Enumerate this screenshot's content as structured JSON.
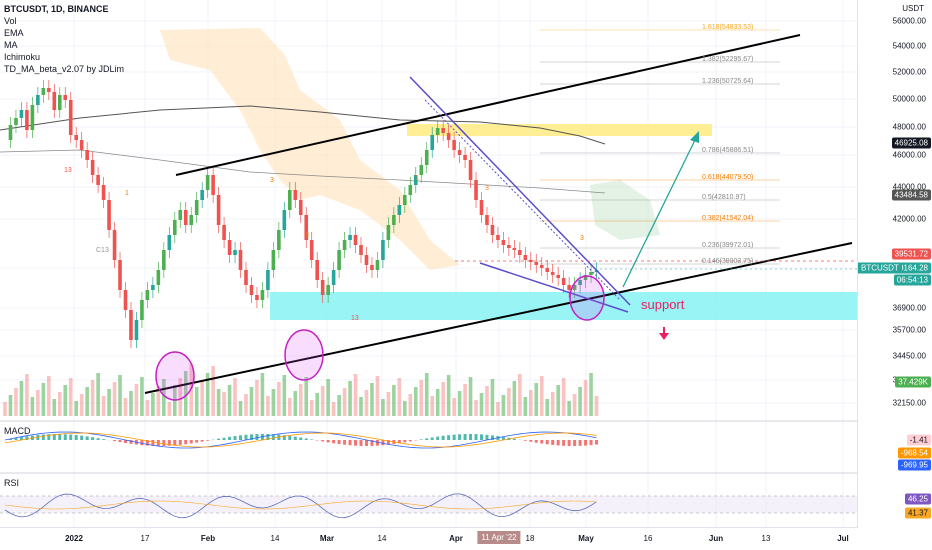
{
  "header": {
    "symbol_line": "BTCUSDT, 1D, BINANCE",
    "indicators": [
      "Vol",
      "EMA",
      "MA",
      "Ichimoku",
      "TD_MA_beta_v2.07 by JDLim"
    ]
  },
  "axis": {
    "currency": "USDT",
    "price_ticks": [
      "56000.00",
      "54000.00",
      "52000.00",
      "50000.00",
      "48000.00",
      "46000.00",
      "44000.00",
      "42000.00",
      "39000.00",
      "36900.00",
      "35700.00",
      "34450.00",
      "33300.00",
      "32150.00"
    ],
    "date_ticks": [
      "2022",
      "17",
      "Feb",
      "14",
      "Mar",
      "14",
      "Apr",
      "11 Apr '22",
      "18",
      "May",
      "16",
      "Jun",
      "13",
      "Jul"
    ],
    "bold_dates": [
      "2022",
      "Feb",
      "Mar",
      "Apr",
      "May",
      "Jun",
      "Jul"
    ],
    "highlight_date": "11 Apr '22"
  },
  "price_tags": {
    "ma_high": "46925.08",
    "ma_low": "43484.58",
    "prev_high": "39531.72",
    "last_price": "39164.28",
    "countdown": "06:54:13",
    "symbol": "BTCUSDT",
    "volume": "37.429K"
  },
  "fib_levels": [
    {
      "label": "1.618(54833.53)"
    },
    {
      "label": "1.382(52295.67)"
    },
    {
      "label": "1.236(50725.64)"
    },
    {
      "label": "0.786(45886.51)"
    },
    {
      "label": "0.618(44079.50)"
    },
    {
      "label": "0.5(42810.97)"
    },
    {
      "label": "0.382(41542.04)"
    },
    {
      "label": "0.236(39972.01)"
    },
    {
      "label": "0.146(39003.75)"
    }
  ],
  "markers": [
    "13",
    "C13",
    "13",
    "3",
    "1",
    "3",
    "1",
    "3",
    "3"
  ],
  "annotations": {
    "support": "support"
  },
  "macd": {
    "label": "MACD",
    "values": [
      "-1.41",
      "-968.54",
      "-969.95"
    ]
  },
  "rsi": {
    "label": "RSI",
    "values": [
      "46.25",
      "41.37"
    ]
  },
  "colors": {
    "up": "#26a69a",
    "up_alt": "#4caf50",
    "down": "#ef5350",
    "support_zone": "#80f2f2",
    "resistance_zone": "#ffeb80",
    "trend": "#000000",
    "wedge": "#5b4ec9",
    "arrow": "#26a69a",
    "circle": "#e040fb"
  }
}
